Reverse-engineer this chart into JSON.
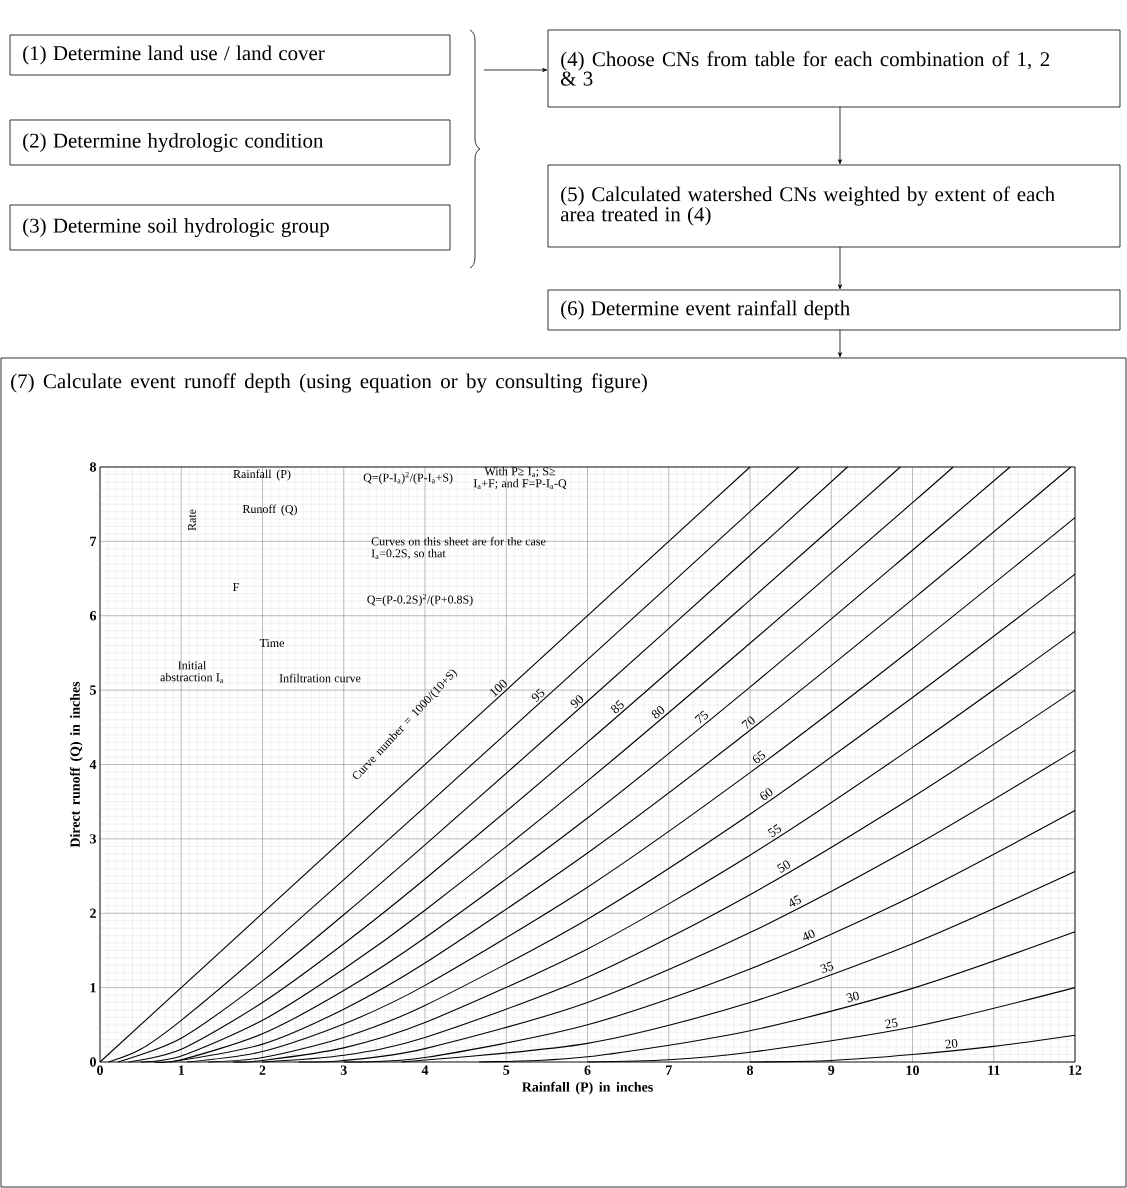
{
  "chart_data": {
    "type": "line",
    "title": "(7) Calculate event runoff depth (using equation or by consulting figure)",
    "xlabel": "Rainfall (P) in inches",
    "ylabel": "Direct runoff (Q) in inches",
    "xlim": [
      0,
      12
    ],
    "ylim": [
      0,
      8
    ],
    "xticks": [
      0,
      1,
      2,
      3,
      4,
      5,
      6,
      7,
      8,
      9,
      10,
      11,
      12
    ],
    "yticks": [
      0,
      1,
      2,
      3,
      4,
      5,
      6,
      7,
      8
    ],
    "grid": true,
    "marker": "none",
    "line_style": "solid",
    "annotations": [
      "(1) Determine land use / land cover",
      "(2) Determine hydrologic condition",
      "(3) Determine soil hydrologic group",
      "(4) Choose CNs from table for each combination of 1, 2 & 3",
      "(5) Calculated watershed CNs weighted by extent of each area treated in (4)",
      "(6) Determine event rainfall depth",
      "Q=(P-I$_{a}$)$^{2}$/(P-I$_{a}$+S)",
      "With P≥ I$_{a}$; S≥ I$_{a}$+F; and F=P-I$_{a}$-Q",
      "Curves on this sheet are for the case I$_{a}$=0.2S, so that",
      "Q=(P-0.2S)$^{2}$/(P+0.8S)",
      "Curve number = 1000/(10+S)",
      "Rainfall (P)",
      "Runoff (Q)",
      "Rate",
      "Time",
      "F",
      "Initial abstraction I$_{a}$",
      "Infiltration curve"
    ],
    "series": [
      {
        "name": "100",
        "color": "#000000",
        "x": [
          0,
          8
        ],
        "values": [
          0,
          8
        ]
      },
      {
        "name": "95",
        "color": "#000000",
        "x": [
          0.105,
          0.5,
          1,
          2,
          4,
          6,
          8,
          8.6
        ],
        "values": [
          0,
          0.17,
          0.56,
          1.48,
          3.43,
          5.41,
          7.4,
          8.0
        ]
      },
      {
        "name": "90",
        "color": "#000000",
        "x": [
          0.222,
          1,
          2,
          3,
          4,
          6,
          8,
          9.2
        ],
        "values": [
          0,
          0.32,
          1.09,
          1.98,
          2.92,
          4.85,
          6.81,
          8.0
        ]
      },
      {
        "name": "85",
        "color": "#000000",
        "x": [
          0.353,
          1,
          2,
          3,
          4,
          6,
          8,
          9.85
        ],
        "values": [
          0,
          0.17,
          0.8,
          1.59,
          2.46,
          4.3,
          6.21,
          8.0
        ]
      },
      {
        "name": "80",
        "color": "#000000",
        "x": [
          0.5,
          1,
          2,
          3,
          4,
          6,
          8,
          10,
          10.5
        ],
        "values": [
          0,
          0.08,
          0.56,
          1.25,
          2.04,
          3.78,
          5.63,
          7.52,
          8.0
        ]
      },
      {
        "name": "75",
        "color": "#000000",
        "x": [
          0.667,
          1,
          2,
          3,
          4,
          6,
          8,
          10,
          11.2
        ],
        "values": [
          0,
          0.03,
          0.38,
          0.96,
          1.67,
          3.28,
          5.04,
          6.88,
          8.0
        ]
      },
      {
        "name": "70",
        "color": "#000000",
        "x": [
          0.857,
          2,
          3,
          4,
          6,
          8,
          10,
          11.95
        ],
        "values": [
          0,
          0.24,
          0.71,
          1.33,
          2.81,
          4.46,
          6.22,
          8.0
        ]
      },
      {
        "name": "65",
        "color": "#000000",
        "x": [
          1.077,
          2,
          3,
          4,
          6,
          8,
          10,
          12
        ],
        "values": [
          0,
          0.14,
          0.51,
          1.03,
          2.35,
          3.89,
          5.56,
          7.32
        ]
      },
      {
        "name": "60",
        "color": "#000000",
        "x": [
          1.333,
          2,
          3,
          4,
          6,
          8,
          10,
          12
        ],
        "values": [
          0,
          0.06,
          0.33,
          0.76,
          1.92,
          3.33,
          4.9,
          6.56
        ]
      },
      {
        "name": "55",
        "color": "#000000",
        "x": [
          1.636,
          2,
          3,
          4,
          6,
          8,
          10,
          12
        ],
        "values": [
          0,
          0.02,
          0.19,
          0.53,
          1.52,
          2.78,
          4.23,
          5.79
        ]
      },
      {
        "name": "50",
        "color": "#000000",
        "x": [
          2,
          3,
          4,
          6,
          8,
          10,
          12
        ],
        "values": [
          0,
          0.09,
          0.33,
          1.14,
          2.25,
          3.56,
          5.0
        ]
      },
      {
        "name": "45",
        "color": "#000000",
        "x": [
          2.444,
          3,
          4,
          6,
          8,
          10,
          12
        ],
        "values": [
          0,
          0.02,
          0.18,
          0.8,
          1.74,
          2.89,
          4.19
        ]
      },
      {
        "name": "40",
        "color": "#000000",
        "x": [
          3,
          4,
          6,
          8,
          10,
          12
        ],
        "values": [
          0,
          0.06,
          0.5,
          1.25,
          2.23,
          3.38
        ]
      },
      {
        "name": "35",
        "color": "#000000",
        "x": [
          3.714,
          6,
          8,
          10,
          12
        ],
        "values": [
          0,
          0.25,
          0.8,
          1.59,
          2.56
        ]
      },
      {
        "name": "30",
        "color": "#000000",
        "x": [
          4.667,
          6,
          8,
          10,
          12
        ],
        "values": [
          0,
          0.07,
          0.42,
          0.99,
          1.75
        ]
      },
      {
        "name": "25",
        "color": "#000000",
        "x": [
          6,
          7,
          8,
          10,
          12
        ],
        "values": [
          0,
          0.03,
          0.13,
          0.47,
          1.0
        ]
      },
      {
        "name": "20",
        "color": "#000000",
        "x": [
          8,
          9,
          10,
          11,
          12
        ],
        "values": [
          0,
          0.02,
          0.1,
          0.21,
          0.36
        ]
      }
    ]
  }
}
